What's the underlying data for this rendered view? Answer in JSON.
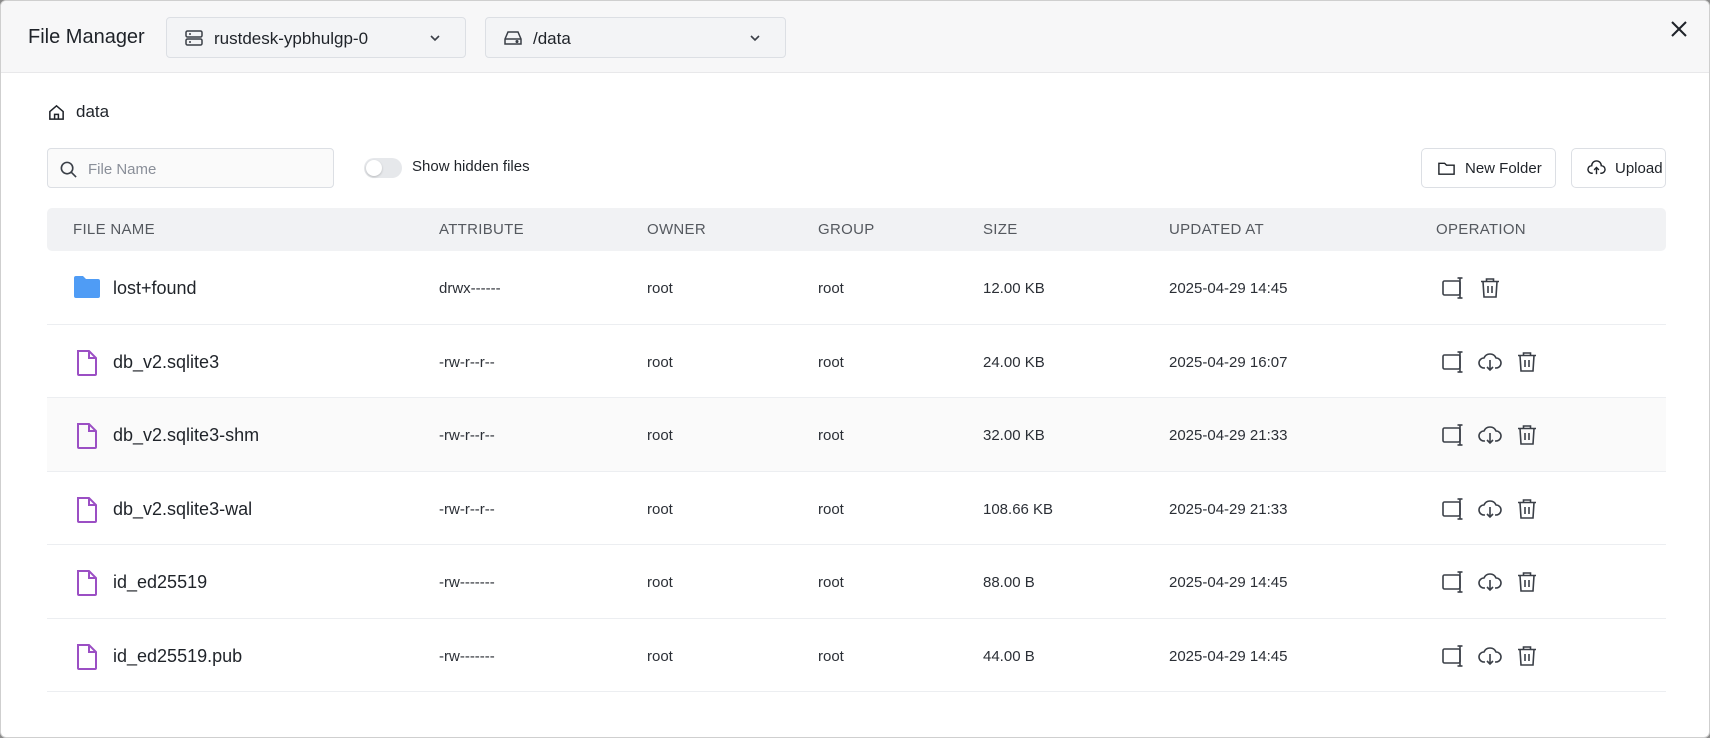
{
  "window": {
    "title": "File Manager"
  },
  "selectors": {
    "server": "rustdesk-ypbhulgp-0",
    "path": "/data"
  },
  "breadcrumb": {
    "current": "data"
  },
  "search": {
    "placeholder": "File Name",
    "value": ""
  },
  "toggle": {
    "label": "Show hidden files",
    "checked": false
  },
  "actions": {
    "new_folder": "New Folder",
    "upload": "Upload"
  },
  "table": {
    "headers": {
      "name": "FILE NAME",
      "attribute": "ATTRIBUTE",
      "owner": "OWNER",
      "group": "GROUP",
      "size": "SIZE",
      "updated": "UPDATED AT",
      "operation": "OPERATION"
    },
    "rows": [
      {
        "type": "folder",
        "name": "lost+found",
        "attribute": "drwx------",
        "owner": "root",
        "group": "root",
        "size": "12.00 KB",
        "updated": "2025-04-29 14:45",
        "download": false
      },
      {
        "type": "file",
        "name": "db_v2.sqlite3",
        "attribute": "-rw-r--r--",
        "owner": "root",
        "group": "root",
        "size": "24.00 KB",
        "updated": "2025-04-29 16:07",
        "download": true
      },
      {
        "type": "file",
        "name": "db_v2.sqlite3-shm",
        "attribute": "-rw-r--r--",
        "owner": "root",
        "group": "root",
        "size": "32.00 KB",
        "updated": "2025-04-29 21:33",
        "download": true
      },
      {
        "type": "file",
        "name": "db_v2.sqlite3-wal",
        "attribute": "-rw-r--r--",
        "owner": "root",
        "group": "root",
        "size": "108.66 KB",
        "updated": "2025-04-29 21:33",
        "download": true
      },
      {
        "type": "file",
        "name": "id_ed25519",
        "attribute": "-rw-------",
        "owner": "root",
        "group": "root",
        "size": "88.00 B",
        "updated": "2025-04-29 14:45",
        "download": true
      },
      {
        "type": "file",
        "name": "id_ed25519.pub",
        "attribute": "-rw-------",
        "owner": "root",
        "group": "root",
        "size": "44.00 B",
        "updated": "2025-04-29 14:45",
        "download": true
      }
    ]
  },
  "colors": {
    "folder_icon": "#4f9cf5",
    "file_icon": "#9b4fc4",
    "header_bg": "#f7f7f8",
    "table_header_bg": "#f1f2f4"
  },
  "icons": {
    "close": "close-icon",
    "server": "server-icon",
    "disk": "hard-drive-icon",
    "home": "home-icon",
    "search": "search-icon",
    "new_folder": "folder-icon",
    "upload": "cloud-upload-icon",
    "rename": "rename-icon",
    "download": "cloud-download-icon",
    "delete": "trash-icon"
  }
}
